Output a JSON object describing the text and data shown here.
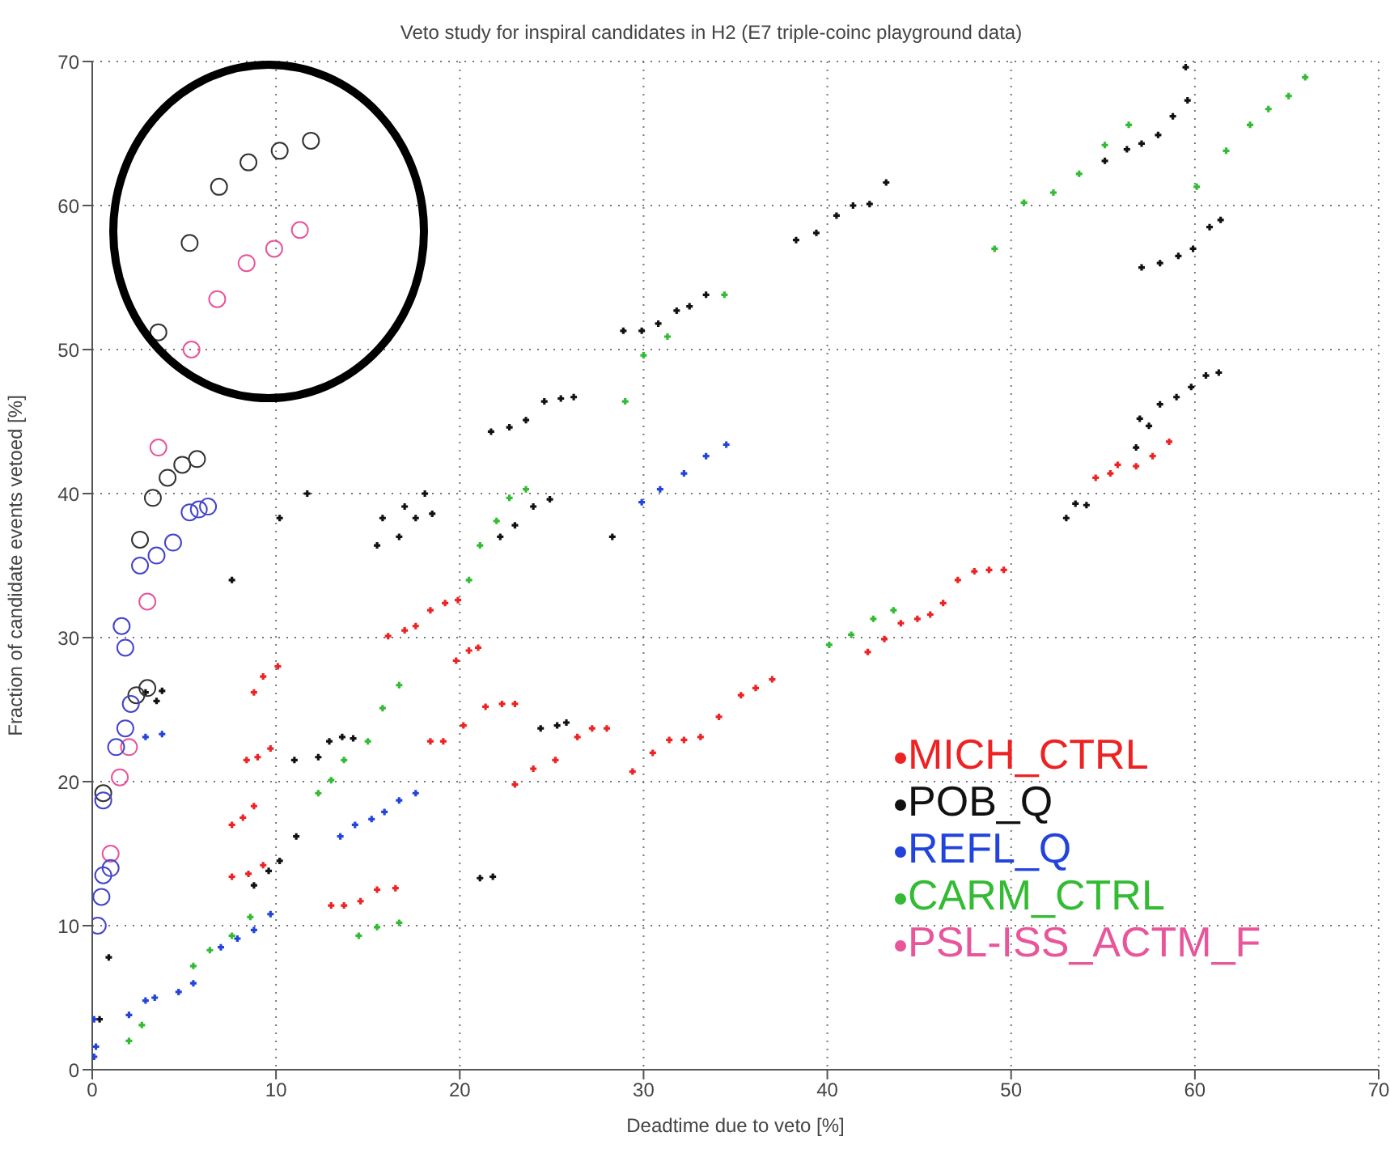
{
  "chart_data": {
    "type": "scatter",
    "title": "Veto study for inspiral candidates in H2 (E7 triple-coinc playground data)",
    "xlabel": "Deadtime due to veto [%]",
    "ylabel": "Fraction of candidate events vetoed [%]",
    "xlim": [
      0,
      70
    ],
    "ylim": [
      0,
      70
    ],
    "xticks": [
      0,
      10,
      20,
      30,
      40,
      50,
      60,
      70
    ],
    "yticks": [
      0,
      10,
      20,
      30,
      40,
      50,
      60,
      70
    ],
    "grid": true,
    "legend": "bottom right",
    "series": [
      {
        "name": "MICH_CTRL",
        "color": "#ee2222",
        "marker": "cross",
        "x": [
          8.8,
          9.3,
          10.1,
          8.4,
          9.0,
          9.7,
          7.6,
          8.2,
          8.8,
          7.6,
          8.5,
          9.3,
          13.0,
          13.7,
          14.6,
          15.5,
          16.5,
          16.1,
          17.0,
          17.6,
          18.4,
          19.2,
          19.9,
          19.8,
          20.5,
          21.0,
          21.4,
          22.3,
          23.0,
          18.4,
          19.1,
          20.2,
          23.0,
          24.0,
          25.2,
          26.4,
          27.2,
          28.0,
          29.4,
          30.5,
          31.4,
          32.2,
          33.1,
          34.1,
          35.3,
          36.1,
          37.0,
          42.2,
          43.1,
          44.0,
          44.9,
          45.6,
          46.3,
          47.1,
          48.0,
          48.8,
          49.6,
          54.6,
          55.4,
          55.8,
          56.8,
          57.7,
          58.6
        ],
        "values": [
          26.2,
          27.3,
          28.0,
          21.5,
          21.7,
          22.3,
          17.0,
          17.5,
          18.3,
          13.4,
          13.6,
          14.2,
          11.4,
          11.4,
          11.7,
          12.5,
          12.6,
          30.1,
          30.5,
          30.8,
          31.9,
          32.4,
          32.6,
          28.4,
          29.1,
          29.3,
          25.2,
          25.4,
          25.4,
          22.8,
          22.8,
          23.9,
          19.8,
          20.9,
          21.5,
          23.1,
          23.7,
          23.7,
          20.7,
          22.0,
          22.9,
          22.9,
          23.1,
          24.5,
          26.0,
          26.5,
          27.1,
          29.0,
          29.9,
          31.0,
          31.3,
          31.6,
          32.4,
          34.0,
          34.6,
          34.7,
          34.7,
          41.1,
          41.4,
          42.0,
          41.9,
          42.6,
          43.6
        ]
      },
      {
        "name": "POB_Q",
        "color": "#111111",
        "marker": "cross",
        "x": [
          0.4,
          0.9,
          2.9,
          3.8,
          3.5,
          7.6,
          10.2,
          11.7,
          15.5,
          16.7,
          17.6,
          18.5,
          15.8,
          17.0,
          18.1,
          21.7,
          22.7,
          23.6,
          24.6,
          25.5,
          26.2,
          22.2,
          23.0,
          24.0,
          24.9,
          28.3,
          28.9,
          29.9,
          30.8,
          31.8,
          32.5,
          33.4,
          38.3,
          39.4,
          40.5,
          41.4,
          42.3,
          43.2,
          55.1,
          56.3,
          57.1,
          58.0,
          58.8,
          59.6,
          59.5,
          57.1,
          58.1,
          59.1,
          59.9,
          60.8,
          61.4,
          53.0,
          53.5,
          54.1,
          56.8,
          57.0,
          57.5,
          58.1,
          59.0,
          59.8,
          60.6,
          61.3,
          8.8,
          9.6,
          10.2,
          11.1,
          11.0,
          12.3,
          12.9,
          13.6,
          14.2,
          21.1,
          21.8,
          24.4,
          25.3,
          25.8
        ],
        "values": [
          3.5,
          7.8,
          26.2,
          26.3,
          25.6,
          34.0,
          38.3,
          40.0,
          36.4,
          37.0,
          38.3,
          38.6,
          38.3,
          39.1,
          40.0,
          44.3,
          44.6,
          45.1,
          46.4,
          46.6,
          46.7,
          37.0,
          37.8,
          39.1,
          39.6,
          37.0,
          51.3,
          51.3,
          51.8,
          52.7,
          53.0,
          53.8,
          57.6,
          58.1,
          59.3,
          60.0,
          60.1,
          61.6,
          63.1,
          63.9,
          64.3,
          64.9,
          66.2,
          67.3,
          69.6,
          55.7,
          56.0,
          56.5,
          57.0,
          58.5,
          59.0,
          38.3,
          39.3,
          39.2,
          43.2,
          45.2,
          44.7,
          46.2,
          46.7,
          47.4,
          48.2,
          48.4,
          12.8,
          13.8,
          14.5,
          16.2,
          21.5,
          21.7,
          22.8,
          23.1,
          23.0,
          13.3,
          13.4,
          23.7,
          23.9,
          24.1
        ]
      },
      {
        "name": "REFL_Q",
        "color": "#2244dd",
        "marker": "cross",
        "x": [
          0.1,
          0.1,
          0.2,
          2.0,
          2.9,
          3.4,
          4.7,
          5.5,
          7.0,
          7.9,
          8.8,
          9.7,
          2.9,
          3.8,
          13.5,
          14.3,
          15.2,
          15.9,
          16.7,
          17.6,
          29.9,
          30.9,
          32.2,
          33.4,
          34.5
        ],
        "values": [
          0.9,
          3.5,
          1.6,
          3.8,
          4.8,
          5.0,
          5.4,
          6.0,
          8.5,
          9.1,
          9.7,
          10.8,
          23.1,
          23.3,
          16.2,
          17.0,
          17.4,
          17.9,
          18.7,
          19.2,
          39.4,
          40.3,
          41.4,
          42.6,
          43.4
        ]
      },
      {
        "name": "CARM_CTRL",
        "color": "#33bb33",
        "marker": "cross",
        "x": [
          2.0,
          2.7,
          5.5,
          6.4,
          7.6,
          8.6,
          14.5,
          15.5,
          16.7,
          12.3,
          13.0,
          13.7,
          15.0,
          15.8,
          16.7,
          20.5,
          21.1,
          22.0,
          22.7,
          23.6,
          29.0,
          30.0,
          31.3,
          34.4,
          40.1,
          41.3,
          42.5,
          43.6,
          49.1,
          50.7,
          52.3,
          53.7,
          55.1,
          56.4,
          60.1,
          61.7,
          63.0,
          64.0,
          65.1,
          66.0
        ],
        "values": [
          2.0,
          3.1,
          7.2,
          8.3,
          9.3,
          10.6,
          9.3,
          9.9,
          10.2,
          19.2,
          20.1,
          21.5,
          22.8,
          25.1,
          26.7,
          34.0,
          36.4,
          38.1,
          39.7,
          40.3,
          46.4,
          49.6,
          50.9,
          53.8,
          29.5,
          30.2,
          31.3,
          31.9,
          57.0,
          60.2,
          60.9,
          62.2,
          64.2,
          65.6,
          61.3,
          63.8,
          65.6,
          66.7,
          67.6,
          68.9
        ]
      },
      {
        "name": "PSL-ISS_ACTM_F",
        "color": "#e8559a",
        "marker": "circle",
        "x": [
          1.0,
          1.5,
          2.0,
          3.0,
          3.6,
          5.4,
          6.8,
          8.4,
          9.9,
          11.3
        ],
        "values": [
          15.0,
          20.3,
          22.4,
          32.5,
          43.2,
          50.0,
          53.5,
          56.0,
          57.0,
          58.3
        ]
      },
      {
        "color": "#333333",
        "marker": "circle",
        "x": [
          0.6,
          2.4,
          3.0,
          2.6,
          3.3,
          4.1,
          4.9,
          5.7,
          3.6,
          5.3,
          6.9,
          8.5,
          10.2,
          11.9
        ],
        "values": [
          19.2,
          26.0,
          26.5,
          36.8,
          39.7,
          41.1,
          42.0,
          42.4,
          51.2,
          57.4,
          61.3,
          63.0,
          63.8,
          64.5
        ]
      },
      {
        "color": "#4444cc",
        "marker": "circle",
        "x": [
          0.3,
          0.5,
          0.6,
          1.0,
          0.6,
          1.3,
          1.8,
          2.1,
          1.8,
          1.6,
          2.6,
          3.5,
          4.4,
          5.3,
          5.8,
          6.3
        ],
        "values": [
          10.0,
          12.0,
          13.5,
          14.0,
          18.7,
          22.4,
          23.7,
          25.4,
          29.3,
          30.8,
          35.0,
          35.7,
          36.6,
          38.7,
          38.9,
          39.1
        ]
      }
    ]
  }
}
